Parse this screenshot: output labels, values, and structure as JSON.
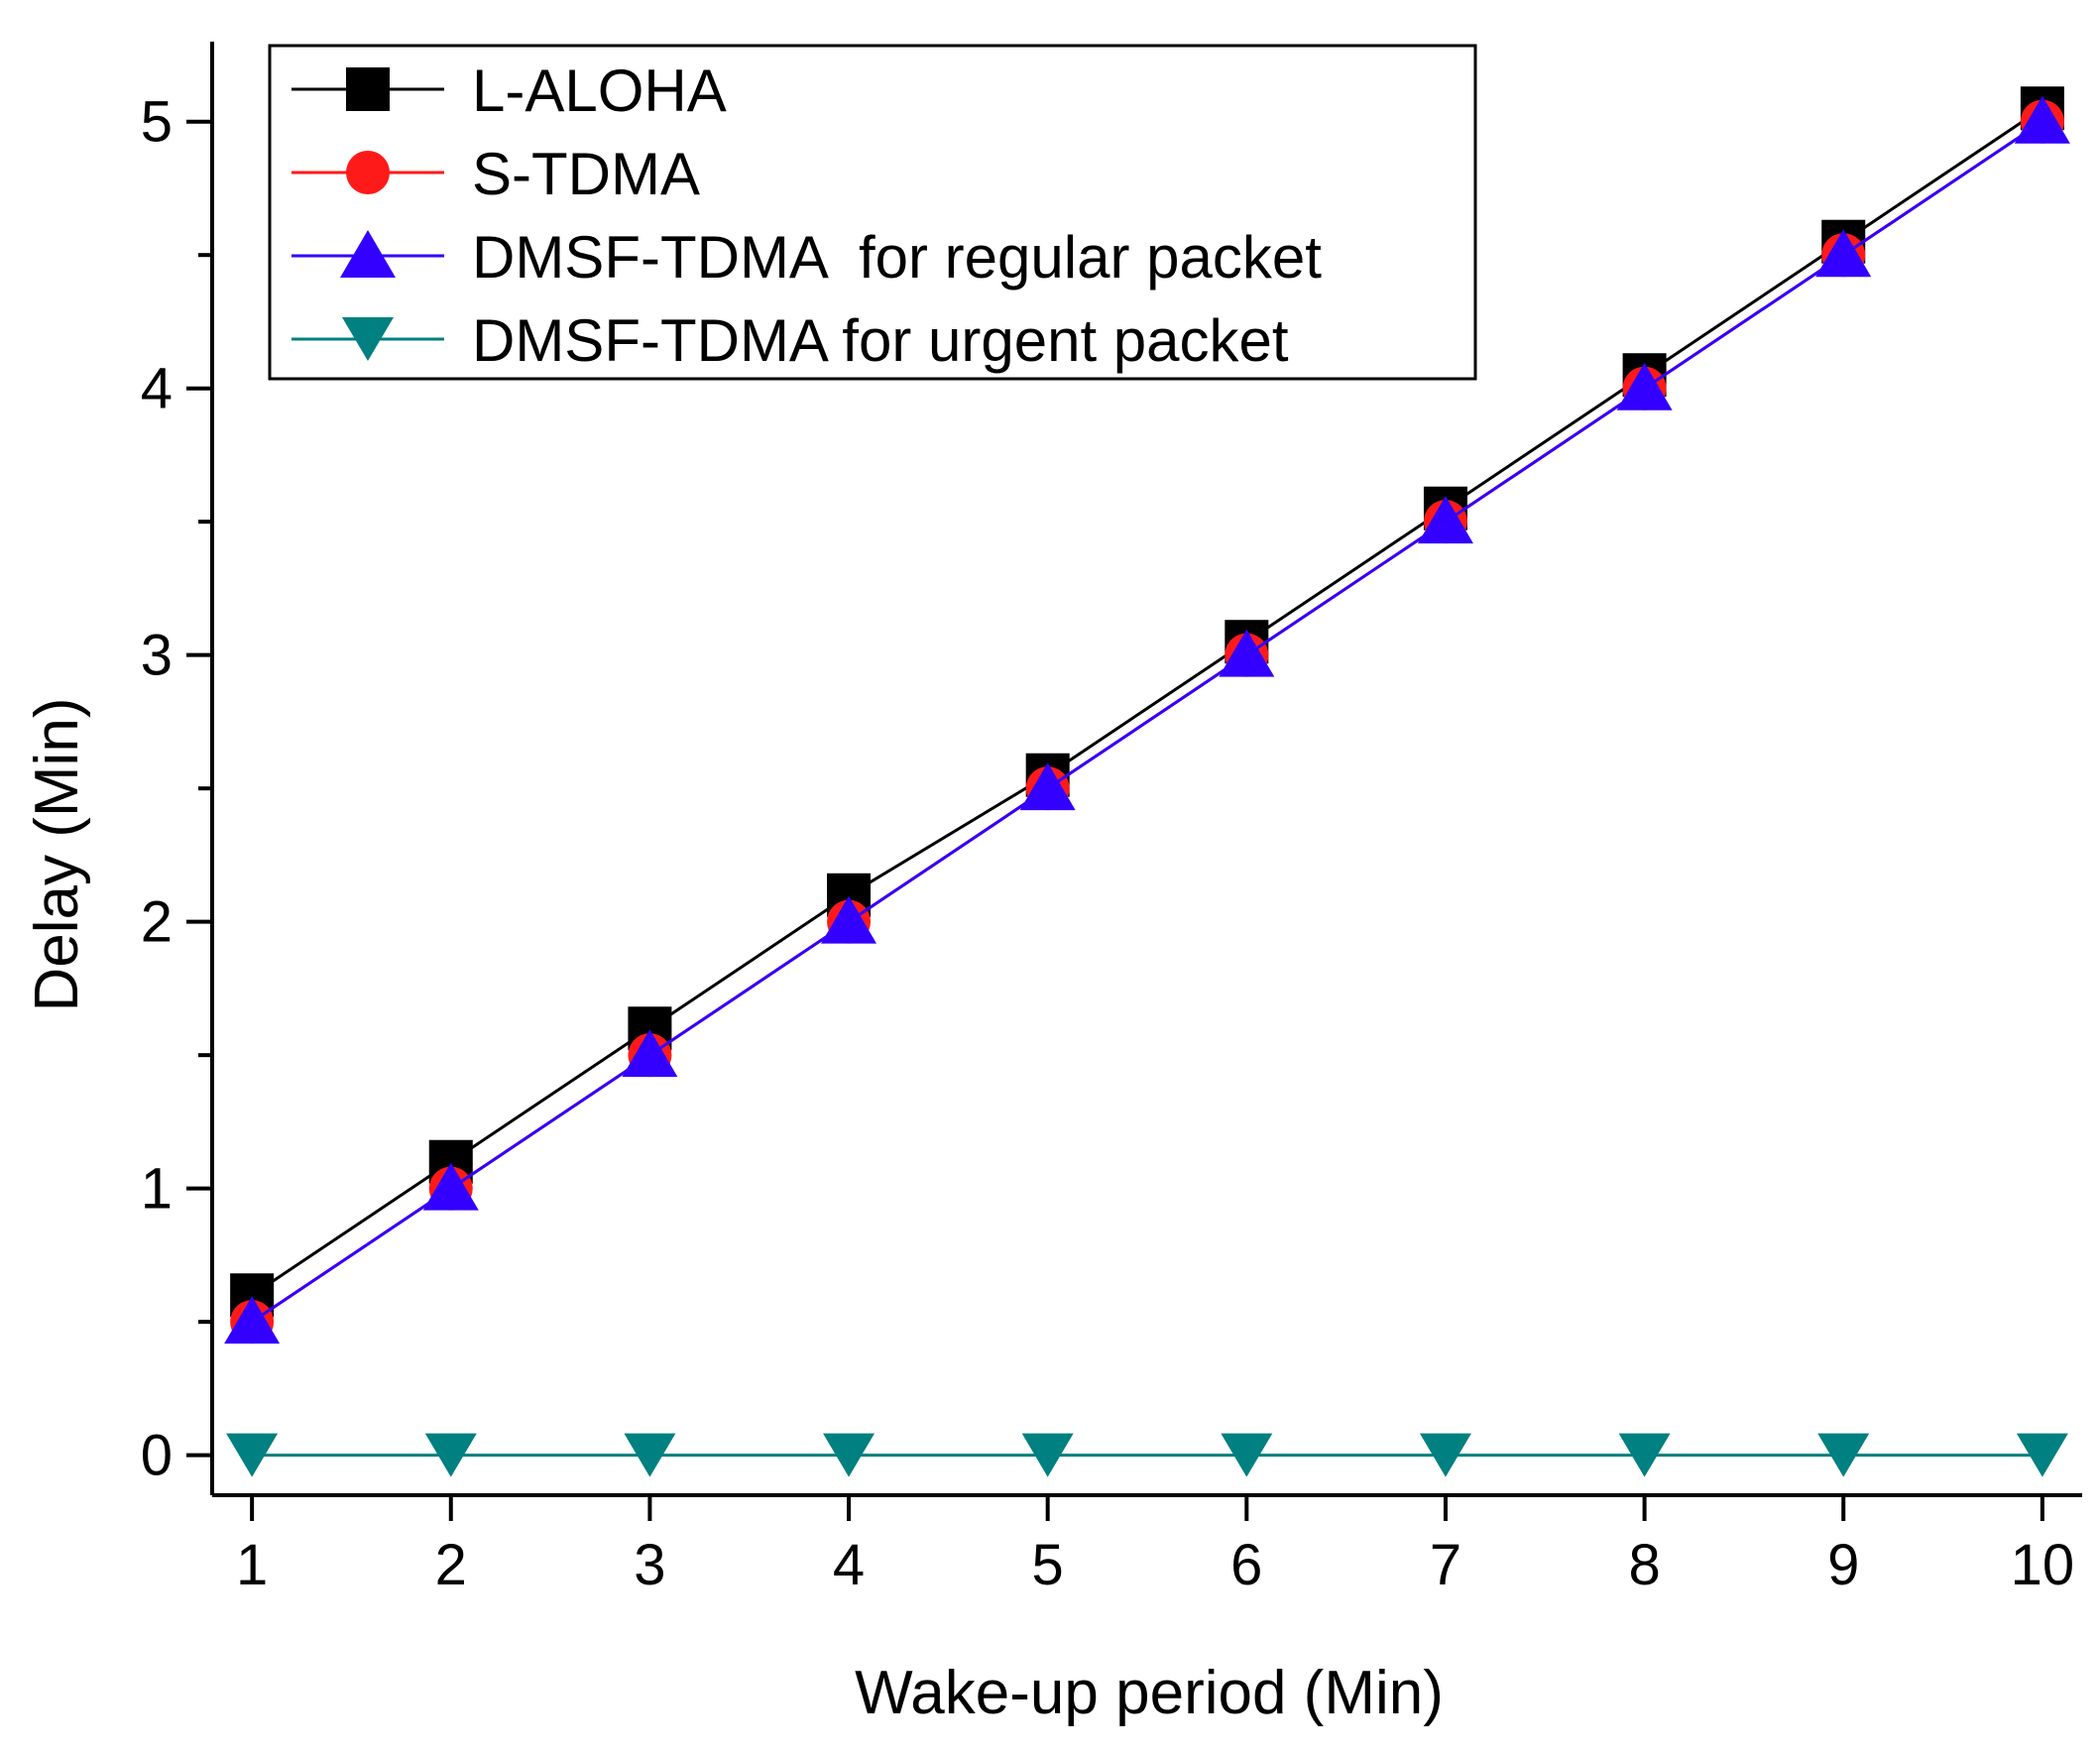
{
  "chart_data": {
    "type": "line",
    "title": "",
    "xlabel": "Wake-up period (Min)",
    "ylabel": "Delay (Min)",
    "x": [
      1,
      2,
      3,
      4,
      5,
      6,
      7,
      8,
      9,
      10
    ],
    "xlim": [
      0.8,
      10.2
    ],
    "ylim": [
      -0.15,
      5.3
    ],
    "xticks": [
      1,
      2,
      3,
      4,
      5,
      6,
      7,
      8,
      9,
      10
    ],
    "yticks": [
      0,
      1,
      2,
      3,
      4,
      5
    ],
    "grid": false,
    "legend_position": "top-left",
    "series": [
      {
        "name": "L-ALOHA",
        "color": "#000000",
        "marker": "square",
        "values": [
          0.6,
          1.1,
          1.6,
          2.1,
          2.55,
          3.05,
          3.55,
          4.05,
          4.55,
          5.05
        ]
      },
      {
        "name": "S-TDMA",
        "color": "#ff1a1a",
        "marker": "circle",
        "values": [
          0.5,
          1.0,
          1.5,
          2.0,
          2.5,
          3.0,
          3.5,
          4.0,
          4.5,
          5.0
        ]
      },
      {
        "name": "DMSF-TDMA  for regular packet",
        "color": "#3300ff",
        "marker": "triangle-up",
        "values": [
          0.5,
          1.0,
          1.5,
          2.0,
          2.5,
          3.0,
          3.5,
          4.0,
          4.5,
          5.0
        ]
      },
      {
        "name": "DMSF-TDMA for urgent packet",
        "color": "#008080",
        "marker": "triangle-down",
        "values": [
          0,
          0,
          0,
          0,
          0,
          0,
          0,
          0,
          0,
          0
        ]
      }
    ]
  }
}
